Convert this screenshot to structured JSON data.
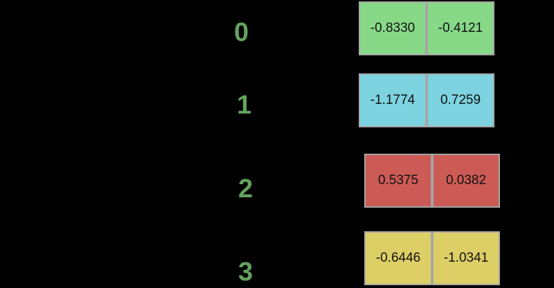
{
  "rows": [
    {
      "index": "0",
      "values": [
        "-0.8330",
        "-0.4121"
      ],
      "color": "#87d987"
    },
    {
      "index": "1",
      "values": [
        "-1.1774",
        "0.7259"
      ],
      "color": "#7dd3df"
    },
    {
      "index": "2",
      "values": [
        "0.5375",
        "0.0382"
      ],
      "color": "#cc5b55"
    },
    {
      "index": "3",
      "values": [
        "-0.6446",
        "-1.0341"
      ],
      "color": "#dccf66"
    }
  ],
  "colors": {
    "background": "#000000",
    "index_text": "#63a25f",
    "cell_border": "#a6a6a6"
  }
}
